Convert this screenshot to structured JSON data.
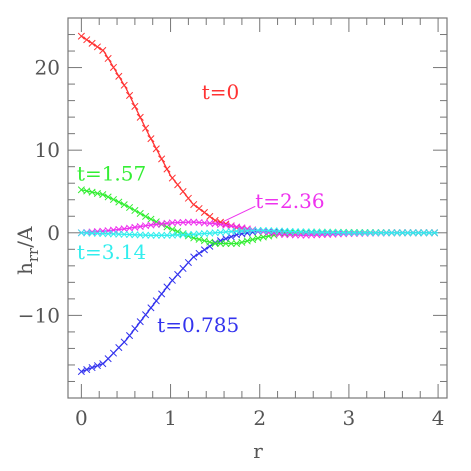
{
  "chart_data": {
    "type": "line",
    "xlabel": "r",
    "ylabel": {
      "main": "h",
      "sub": "rr",
      "suffix": "/A"
    },
    "xlim": [
      -0.15,
      4.1
    ],
    "ylim": [
      -20,
      26
    ],
    "xticks": {
      "major": [
        0,
        1,
        2,
        3,
        4
      ],
      "minor_step": 0.2
    },
    "yticks": {
      "major": [
        -10,
        0,
        10,
        20
      ],
      "minor_step": 2
    },
    "marker": "x",
    "series": [
      {
        "name": "t=0",
        "color": "#ff3333",
        "label": "t=0",
        "x": [
          0,
          0.25,
          0.5,
          0.75,
          1.0,
          1.25,
          1.5,
          1.75,
          2.0,
          2.25,
          2.5,
          3.0,
          3.5,
          4.0
        ],
        "y": [
          23.8,
          22.0,
          17.5,
          12.0,
          6.9,
          3.5,
          1.5,
          0.6,
          0.2,
          0.05,
          0.01,
          0.0,
          0.0,
          0.0
        ]
      },
      {
        "name": "t=0.785",
        "color": "#3333ee",
        "label": "t=0.785",
        "x": [
          0,
          0.25,
          0.5,
          0.75,
          1.0,
          1.25,
          1.5,
          1.75,
          2.0,
          2.25,
          2.5,
          3.0,
          3.5,
          4.0
        ],
        "y": [
          -16.8,
          -15.8,
          -13.0,
          -9.5,
          -6.0,
          -3.0,
          -1.2,
          -0.2,
          0.2,
          0.15,
          0.05,
          0.0,
          0.0,
          0.0
        ]
      },
      {
        "name": "t=1.57",
        "color": "#33ee33",
        "label": "t=1.57",
        "x": [
          0,
          0.25,
          0.5,
          0.75,
          1.0,
          1.25,
          1.5,
          1.75,
          2.0,
          2.25,
          2.5,
          3.0,
          3.5,
          4.0
        ],
        "y": [
          5.2,
          4.6,
          3.3,
          1.8,
          0.5,
          -0.6,
          -1.3,
          -1.3,
          -0.6,
          -0.1,
          0.1,
          0.05,
          0.0,
          0.0
        ]
      },
      {
        "name": "t=2.36",
        "color": "#ee33ee",
        "label": "t=2.36",
        "x": [
          0,
          0.25,
          0.5,
          0.75,
          1.0,
          1.25,
          1.5,
          1.75,
          2.0,
          2.25,
          2.5,
          3.0,
          3.5,
          4.0
        ],
        "y": [
          0.0,
          0.2,
          0.5,
          0.9,
          1.2,
          1.3,
          1.1,
          0.7,
          0.2,
          -0.2,
          -0.3,
          -0.1,
          0.0,
          0.0
        ]
      },
      {
        "name": "t=3.14",
        "color": "#33eeee",
        "label": "t=3.14",
        "x": [
          0,
          0.25,
          0.5,
          0.75,
          1.0,
          1.25,
          1.5,
          1.75,
          2.0,
          2.25,
          2.5,
          3.0,
          3.5,
          4.0
        ],
        "y": [
          0.0,
          -0.1,
          -0.2,
          -0.3,
          -0.3,
          -0.2,
          0.0,
          0.2,
          0.3,
          0.2,
          0.1,
          0.0,
          0.0,
          0.0
        ]
      }
    ],
    "grid": false,
    "legend": "inline labels"
  }
}
